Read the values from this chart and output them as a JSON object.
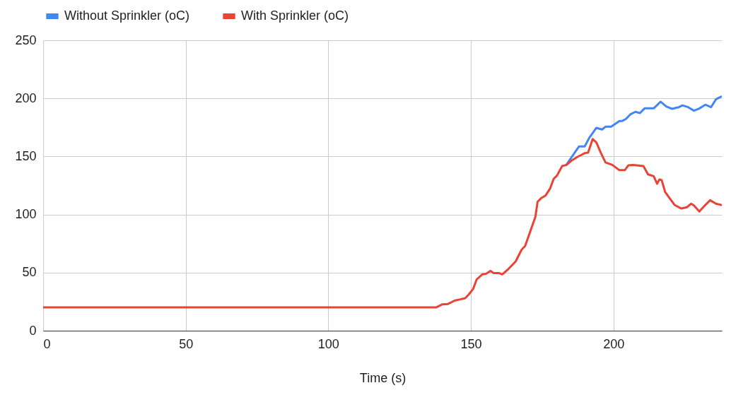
{
  "chart_data": {
    "type": "line",
    "xlabel": "Time (s)",
    "xlim": [
      0,
      238
    ],
    "xticks": [
      0,
      50,
      100,
      150,
      200
    ],
    "ylim": [
      0,
      250
    ],
    "yticks": [
      0,
      50,
      100,
      150,
      200,
      250
    ],
    "grid": true,
    "legend": "top",
    "marker": "none",
    "line_style": "solid",
    "series": [
      {
        "name": "Without Sprinkler (oC)",
        "color": "#4285f4",
        "x": [
          183.5,
          184.3,
          186.3,
          187.9,
          189.9,
          191.5,
          194,
          196,
          197.2,
          199.2,
          202,
          203.2,
          204.4,
          206,
          207.7,
          209.3,
          210.9,
          214.1,
          216.5,
          218.5,
          220.5,
          222.9,
          224.2,
          226.2,
          228.2,
          230.2,
          232.2,
          234.2,
          235.9,
          237.7
        ],
        "values": [
          142.7,
          145.8,
          152.9,
          158.6,
          158.6,
          166,
          174.6,
          173.2,
          175.6,
          175.6,
          180.3,
          180.7,
          182.3,
          186.4,
          188.4,
          187.3,
          191.4,
          191.4,
          197.1,
          193,
          191,
          192.4,
          194,
          192.4,
          189.4,
          191.4,
          194.5,
          192.4,
          199.1,
          201.5
        ]
      },
      {
        "name": "With Sprinkler (oC)",
        "color": "#ea4335",
        "x": [
          0,
          137.8,
          140,
          142,
          144.4,
          146.3,
          148,
          149.2,
          150.8,
          152,
          154,
          155.3,
          156.9,
          158,
          160,
          161,
          163.3,
          165.7,
          167.8,
          169,
          170.6,
          172.6,
          173.4,
          174.6,
          176.2,
          177.8,
          179,
          180.2,
          182,
          183.5,
          185.5,
          187.5,
          190,
          191.1,
          192.7,
          194,
          195.6,
          197.2,
          199.6,
          202,
          204,
          205.2,
          206.9,
          210.5,
          212.1,
          214.1,
          215.3,
          216.1,
          216.9,
          218.1,
          219.3,
          221.4,
          223.8,
          225.8,
          227.2,
          228.2,
          230.1,
          231.8,
          233.9,
          235.9,
          237.7
        ],
        "values": [
          20,
          20,
          22.7,
          23,
          26,
          27,
          28,
          31,
          36,
          44,
          48.5,
          49,
          51.5,
          49.5,
          49.5,
          48.5,
          53.5,
          59.6,
          69.8,
          72.8,
          84,
          98,
          111,
          114,
          116.4,
          122.5,
          130.6,
          133.6,
          141.7,
          142.7,
          146.8,
          149.8,
          152.9,
          153.3,
          165,
          162,
          152.9,
          144.8,
          142.7,
          138.3,
          138.3,
          142.3,
          142.7,
          141.7,
          134.6,
          133,
          126.5,
          130.2,
          129.6,
          119.4,
          115.4,
          108.3,
          105.2,
          106.3,
          109.3,
          107.8,
          102.6,
          107.2,
          112.3,
          109.3,
          108.3
        ]
      }
    ]
  }
}
